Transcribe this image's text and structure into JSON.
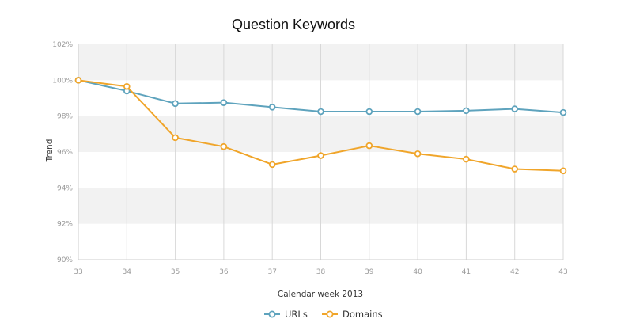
{
  "colors": {
    "urls": "#5ea3bd",
    "domains": "#f0a52a",
    "band": "#f2f2f2",
    "grid": "#d8d8d8",
    "axis": "#cccccc"
  },
  "chart_data": {
    "type": "line",
    "title": "Question Keywords",
    "xlabel": "Calendar week 2013",
    "ylabel": "Trend",
    "x": [
      33,
      34,
      35,
      36,
      37,
      38,
      39,
      40,
      41,
      42,
      43
    ],
    "xlim": [
      33,
      43
    ],
    "ylim": [
      90,
      102
    ],
    "yticks": [
      90,
      92,
      94,
      96,
      98,
      100,
      102
    ],
    "ytick_labels": [
      "90%",
      "92%",
      "94%",
      "96%",
      "98%",
      "100%",
      "102%"
    ],
    "grid": true,
    "legend_position": "bottom-center",
    "series": [
      {
        "name": "URLs",
        "color_key": "urls",
        "values": [
          100,
          99.4,
          98.7,
          98.75,
          98.5,
          98.25,
          98.25,
          98.25,
          98.3,
          98.4,
          98.2
        ]
      },
      {
        "name": "Domains",
        "color_key": "domains",
        "values": [
          100,
          99.65,
          96.8,
          96.3,
          95.3,
          95.8,
          96.35,
          95.9,
          95.6,
          95.05,
          94.95
        ]
      }
    ]
  }
}
